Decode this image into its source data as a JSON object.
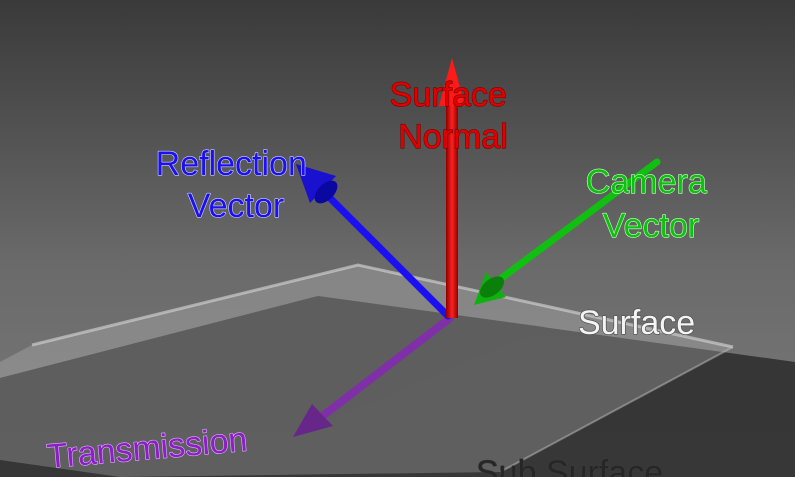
{
  "labels": {
    "surface_normal": [
      "Surface",
      "Normal"
    ],
    "reflection_vector": [
      "Reflection",
      "Vector"
    ],
    "camera_vector": [
      "Camera",
      "Vector"
    ],
    "surface": "Surface",
    "transmission": "Transmission",
    "sub_surface": "Sub Surface"
  },
  "colors": {
    "surface_normal": "#e00000",
    "reflection_vector": "#1a10f0",
    "camera_vector": "#10c010",
    "transmission": "#8a20c0",
    "surface_label": "#f4f4f4",
    "sub_surface_label": "#2a2a2a"
  }
}
